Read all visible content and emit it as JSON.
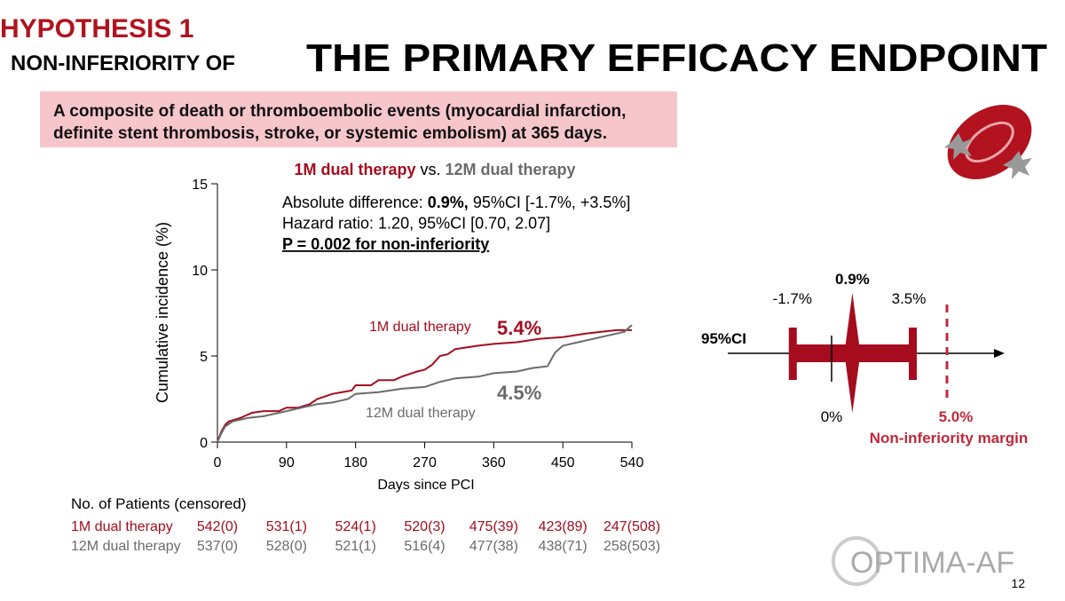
{
  "header": {
    "kicker": "HYPOTHESIS 1",
    "title_small": "NON-INFERIORITY OF",
    "title_large": "THE PRIMARY EFFICACY ENDPOINT"
  },
  "definition": [
    "A composite of death or thromboembolic events (myocardial infarction,",
    "definite stent thrombosis, stroke, or systemic embolism) at 365 days."
  ],
  "chart_data": {
    "type": "line",
    "title_parts": [
      {
        "text": "1M dual therapy",
        "color": "#a50d1e"
      },
      {
        "text": " vs. ",
        "color": "#000000"
      },
      {
        "text": "12M dual therapy",
        "color": "#6b6b6b"
      }
    ],
    "stats": [
      [
        {
          "text": "Absolute difference: "
        },
        {
          "text": "0.9%,",
          "bold": true
        },
        {
          "text": " 95%CI [-1.7%, +3.5%]"
        }
      ],
      [
        {
          "text": "Hazard ratio: 1.20, 95%CI [0.70, 2.07]"
        }
      ],
      [
        {
          "text": "P = 0.002 for non-inferiority",
          "bold": true,
          "underline": true
        }
      ]
    ],
    "x_label": "Days since PCI",
    "y_label": "Cumulative incidence (%)",
    "xlim": [
      0,
      540
    ],
    "ylim": [
      0,
      15
    ],
    "xticks": [
      0,
      90,
      180,
      270,
      360,
      450,
      540
    ],
    "yticks": [
      0,
      5,
      10,
      15
    ],
    "series": [
      {
        "name": "1M dual therapy",
        "color": "#a50d1e",
        "final_label": "5.4%",
        "x": [
          0,
          5,
          10,
          15,
          30,
          45,
          60,
          80,
          90,
          105,
          120,
          130,
          150,
          175,
          180,
          200,
          210,
          230,
          240,
          260,
          270,
          280,
          290,
          300,
          310,
          340,
          360,
          390,
          420,
          450,
          480,
          500,
          520,
          540
        ],
        "values": [
          0,
          0.6,
          1.0,
          1.2,
          1.4,
          1.7,
          1.8,
          1.8,
          2.0,
          2.0,
          2.2,
          2.5,
          2.8,
          3.0,
          3.3,
          3.3,
          3.6,
          3.6,
          3.8,
          4.1,
          4.2,
          4.5,
          5.0,
          5.1,
          5.4,
          5.6,
          5.7,
          5.8,
          6.0,
          6.1,
          6.3,
          6.4,
          6.5,
          6.5
        ]
      },
      {
        "name": "12M dual therapy",
        "color": "#6b6b6b",
        "final_label": "4.5%",
        "x": [
          0,
          5,
          10,
          20,
          40,
          60,
          90,
          110,
          130,
          150,
          170,
          180,
          210,
          240,
          270,
          290,
          300,
          310,
          340,
          360,
          390,
          410,
          430,
          440,
          450,
          470,
          490,
          510,
          530,
          540
        ],
        "values": [
          0,
          0.5,
          0.9,
          1.2,
          1.4,
          1.5,
          1.8,
          2.0,
          2.2,
          2.3,
          2.5,
          2.8,
          2.9,
          3.1,
          3.2,
          3.5,
          3.6,
          3.7,
          3.8,
          4.0,
          4.1,
          4.3,
          4.4,
          5.2,
          5.6,
          5.8,
          6.0,
          6.2,
          6.4,
          6.8
        ]
      }
    ]
  },
  "risk_table": {
    "title": "No. of Patients (censored)",
    "rows": [
      {
        "name": "1M dual therapy",
        "color": "#a50d1e",
        "cells": [
          "542(0)",
          "531(1)",
          "524(1)",
          "520(3)",
          "475(39)",
          "423(89)",
          "247(508)"
        ]
      },
      {
        "name": "12M dual therapy",
        "color": "#6b6b6b",
        "cells": [
          "537(0)",
          "528(0)",
          "521(1)",
          "516(4)",
          "477(38)",
          "438(71)",
          "258(503)"
        ]
      }
    ]
  },
  "forest": {
    "ci_label": "95%CI",
    "estimate": {
      "value": 0.9,
      "label": "0.9%"
    },
    "ci_low": {
      "value": -1.7,
      "label": "-1.7%"
    },
    "ci_high": {
      "value": 3.5,
      "label": "3.5%"
    },
    "zero": {
      "value": 0,
      "label": "0%"
    },
    "margin": {
      "value": 5.0,
      "label": "5.0%",
      "text": "Non-inferiority margin"
    }
  },
  "logo": "OPTIMA-AF",
  "page_number": "12"
}
